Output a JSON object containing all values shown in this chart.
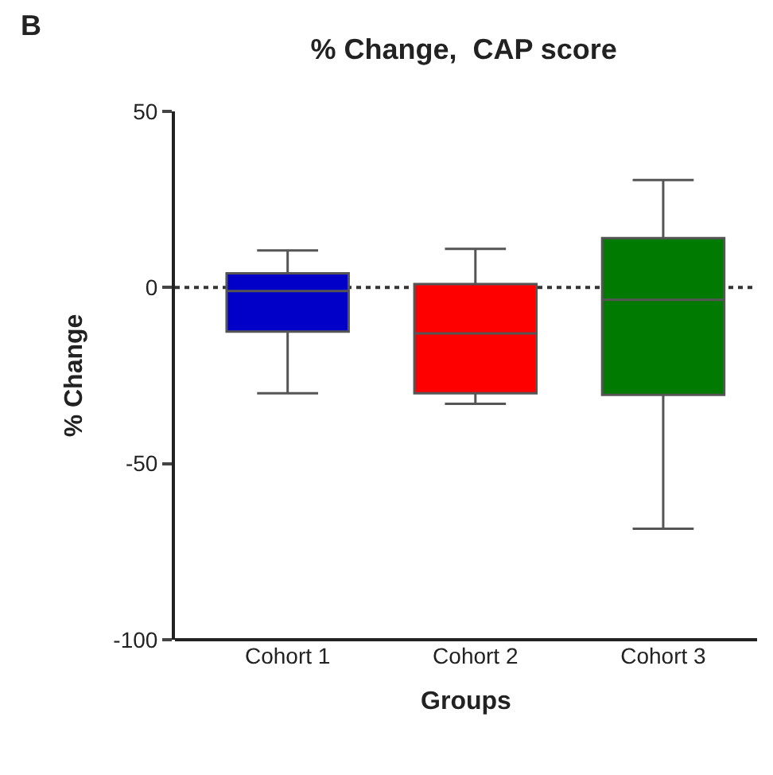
{
  "chart_data": {
    "type": "box",
    "title": "% Change,  CAP score",
    "xlabel": "Groups",
    "ylabel": "% Change",
    "categories": [
      "Cohort 1",
      "Cohort 2",
      "Cohort 3"
    ],
    "colors": [
      "#0000c8",
      "#ff0000",
      "#007a00"
    ],
    "boxes": [
      {
        "low": -30,
        "q1": -12.5,
        "median": -1,
        "q3": 4,
        "high": 10.5
      },
      {
        "low": -33,
        "q1": -30,
        "median": -13,
        "q3": 1,
        "high": 11
      },
      {
        "low": -68.5,
        "q1": -30.5,
        "median": -3.5,
        "q3": 14,
        "high": 30.5
      }
    ],
    "ylim": [
      -100,
      50
    ],
    "yticks": [
      -100,
      -50,
      0,
      50
    ],
    "ref_lines": [
      {
        "axis": "y",
        "value": 0,
        "line_style": "dotted",
        "color": "#333333"
      }
    ],
    "annotations": [
      "B"
    ],
    "grid": false,
    "legend": false
  }
}
